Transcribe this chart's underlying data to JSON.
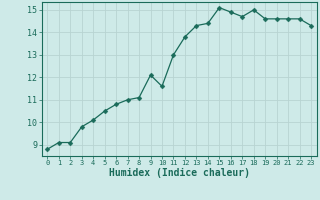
{
  "x": [
    0,
    1,
    2,
    3,
    4,
    5,
    6,
    7,
    8,
    9,
    10,
    11,
    12,
    13,
    14,
    15,
    16,
    17,
    18,
    19,
    20,
    21,
    22,
    23
  ],
  "y": [
    8.8,
    9.1,
    9.1,
    9.8,
    10.1,
    10.5,
    10.8,
    11.0,
    11.1,
    12.1,
    11.6,
    13.0,
    13.8,
    14.3,
    14.4,
    15.1,
    14.9,
    14.7,
    15.0,
    14.6,
    14.6,
    14.6,
    14.6,
    14.3
  ],
  "line_color": "#1a6b5a",
  "marker": "D",
  "marker_size": 2.5,
  "bg_color": "#ceeae8",
  "grid_color": "#b8d4d2",
  "tick_color": "#1a6b5a",
  "xlabel": "Humidex (Indice chaleur)",
  "xlabel_fontsize": 7,
  "ylabel_ticks": [
    9,
    10,
    11,
    12,
    13,
    14,
    15
  ],
  "xlim": [
    -0.5,
    23.5
  ],
  "ylim": [
    8.5,
    15.35
  ]
}
